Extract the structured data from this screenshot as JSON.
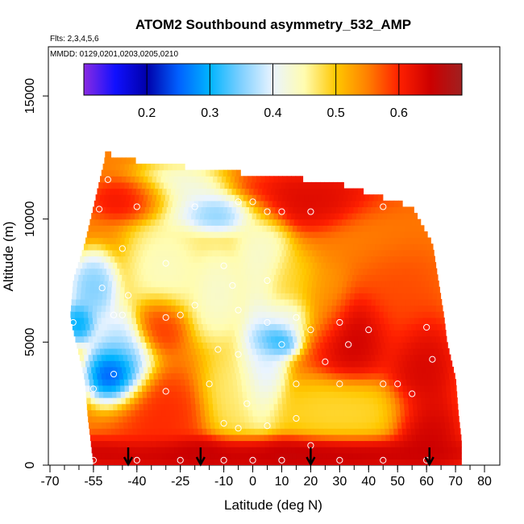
{
  "chart_data": {
    "type": "heatmap",
    "title": "ATOM2 Southbound asymmetry_532_AMP",
    "subtitle_flights": "Flts: 2,3,4,5,6",
    "subtitle_dates": "MMDD: 0129,0201,0203,0205,0210",
    "xlabel": "Latitude (deg N)",
    "ylabel": "Altitude (m)",
    "xlim": [
      -70,
      80
    ],
    "ylim": [
      0,
      17000
    ],
    "x_ticks": [
      -70,
      -55,
      -40,
      -25,
      -10,
      0,
      10,
      20,
      30,
      40,
      50,
      60,
      70,
      80
    ],
    "x_tick_labels": [
      "-70",
      "-55",
      "-40",
      "-25",
      "-10",
      "0",
      "10",
      "20",
      "30",
      "40",
      "50",
      "60",
      "70",
      "80"
    ],
    "x_minor_step": 5,
    "y_ticks": [
      0,
      5000,
      10000,
      15000
    ],
    "y_tick_labels": [
      "0",
      "5000",
      "10000",
      "15000"
    ],
    "colorbar": {
      "range": [
        0.1,
        0.7
      ],
      "ticks": [
        0.2,
        0.3,
        0.4,
        0.5,
        0.6
      ],
      "tick_labels": [
        "0.2",
        "0.3",
        "0.4",
        "0.5",
        "0.6"
      ],
      "boundaries": [
        0.2,
        0.3,
        0.4,
        0.5,
        0.6
      ],
      "stops": [
        {
          "v": 0.1,
          "c": "#8a2be2"
        },
        {
          "v": 0.15,
          "c": "#1010ff"
        },
        {
          "v": 0.2,
          "c": "#0000aa"
        },
        {
          "v": 0.25,
          "c": "#0060ff"
        },
        {
          "v": 0.3,
          "c": "#00b4ff"
        },
        {
          "v": 0.35,
          "c": "#80d0ff"
        },
        {
          "v": 0.4,
          "c": "#eaf4ff"
        },
        {
          "v": 0.45,
          "c": "#fffcb0"
        },
        {
          "v": 0.5,
          "c": "#ffc800"
        },
        {
          "v": 0.55,
          "c": "#ff8000"
        },
        {
          "v": 0.6,
          "c": "#ff2000"
        },
        {
          "v": 0.65,
          "c": "#cc0000"
        },
        {
          "v": 0.7,
          "c": "#a02020"
        }
      ]
    },
    "envelope": [
      {
        "alt": 0,
        "lat_min": -55,
        "lat_max": 72
      },
      {
        "alt": 1000,
        "lat_min": -56,
        "lat_max": 72
      },
      {
        "alt": 2000,
        "lat_min": -57,
        "lat_max": 71
      },
      {
        "alt": 3500,
        "lat_min": -58,
        "lat_max": 70
      },
      {
        "alt": 5000,
        "lat_min": -61,
        "lat_max": 67
      },
      {
        "alt": 6000,
        "lat_min": -63,
        "lat_max": 66
      },
      {
        "alt": 7500,
        "lat_min": -62,
        "lat_max": 64
      },
      {
        "alt": 9000,
        "lat_min": -58,
        "lat_max": 62
      },
      {
        "alt": 10500,
        "lat_min": -55,
        "lat_max": 55
      },
      {
        "alt": 11500,
        "lat_min": -53,
        "lat_max": 28
      },
      {
        "alt": 12000,
        "lat_min": -52,
        "lat_max": -15
      },
      {
        "alt": 12500,
        "lat_min": -51,
        "lat_max": -49
      }
    ],
    "field_centers": [
      {
        "lat": -48,
        "alt": 3700,
        "r_lat": 6,
        "r_alt": 800,
        "v": 0.14
      },
      {
        "lat": -60,
        "alt": 5800,
        "r_lat": 4,
        "r_alt": 600,
        "v": 0.27
      },
      {
        "lat": -55,
        "alt": 7200,
        "r_lat": 6,
        "r_alt": 1000,
        "v": 0.33
      },
      {
        "lat": -46,
        "alt": 4300,
        "r_lat": 8,
        "r_alt": 1500,
        "v": 0.35
      },
      {
        "lat": -30,
        "alt": 8000,
        "r_lat": 10,
        "r_alt": 1500,
        "v": 0.43
      },
      {
        "lat": -25,
        "alt": 11000,
        "r_lat": 12,
        "r_alt": 900,
        "v": 0.4
      },
      {
        "lat": -12,
        "alt": 10300,
        "r_lat": 10,
        "r_alt": 600,
        "v": 0.32
      },
      {
        "lat": -12,
        "alt": 7000,
        "r_lat": 7,
        "r_alt": 1500,
        "v": 0.42
      },
      {
        "lat": 3,
        "alt": 4400,
        "r_lat": 6,
        "r_alt": 2000,
        "v": 0.37
      },
      {
        "lat": 8,
        "alt": 5100,
        "r_lat": 6,
        "r_alt": 500,
        "v": 0.27
      },
      {
        "lat": 3,
        "alt": 8500,
        "r_lat": 7,
        "r_alt": 1500,
        "v": 0.42
      },
      {
        "lat": -6,
        "alt": 3000,
        "r_lat": 8,
        "r_alt": 1500,
        "v": 0.46
      },
      {
        "lat": 13,
        "alt": 6000,
        "r_lat": 6,
        "r_alt": 700,
        "v": 0.38
      },
      {
        "lat": 13,
        "alt": 7300,
        "r_lat": 7,
        "r_alt": 1000,
        "v": 0.48
      },
      {
        "lat": 24,
        "alt": 6500,
        "r_lat": 8,
        "r_alt": 1200,
        "v": 0.53
      },
      {
        "lat": 35,
        "alt": 5300,
        "r_lat": 10,
        "r_alt": 1200,
        "v": 0.66
      },
      {
        "lat": 50,
        "alt": 7000,
        "r_lat": 10,
        "r_alt": 2000,
        "v": 0.58
      },
      {
        "lat": 58,
        "alt": 4000,
        "r_lat": 8,
        "r_alt": 1500,
        "v": 0.65
      },
      {
        "lat": 20,
        "alt": 10800,
        "r_lat": 20,
        "r_alt": 800,
        "v": 0.64
      },
      {
        "lat": 45,
        "alt": 9500,
        "r_lat": 12,
        "r_alt": 1200,
        "v": 0.55
      },
      {
        "lat": 30,
        "alt": 2200,
        "r_lat": 20,
        "r_alt": 900,
        "v": 0.48
      },
      {
        "lat": -40,
        "alt": 10800,
        "r_lat": 10,
        "r_alt": 600,
        "v": 0.63
      },
      {
        "lat": -32,
        "alt": 5800,
        "r_lat": 6,
        "r_alt": 800,
        "v": 0.6
      },
      {
        "lat": 0,
        "alt": 500,
        "r_lat": 60,
        "r_alt": 500,
        "v": 0.67
      },
      {
        "lat": -35,
        "alt": 2000,
        "r_lat": 12,
        "r_alt": 1200,
        "v": 0.6
      },
      {
        "lat": 60,
        "alt": 1500,
        "r_lat": 8,
        "r_alt": 1200,
        "v": 0.66
      }
    ],
    "field_background": 0.55,
    "sample_points": [
      [
        -50,
        11600
      ],
      [
        -53,
        10400
      ],
      [
        -40,
        10500
      ],
      [
        -20,
        10500
      ],
      [
        -5,
        10700
      ],
      [
        0,
        10700
      ],
      [
        5,
        10300
      ],
      [
        10,
        10300
      ],
      [
        20,
        10300
      ],
      [
        45,
        10500
      ],
      [
        -45,
        8800
      ],
      [
        -30,
        8200
      ],
      [
        -10,
        8100
      ],
      [
        5,
        7500
      ],
      [
        -7,
        7300
      ],
      [
        -43,
        6900
      ],
      [
        -52,
        7200
      ],
      [
        -20,
        6500
      ],
      [
        -25,
        6100
      ],
      [
        -30,
        6000
      ],
      [
        -62,
        5800
      ],
      [
        -45,
        6100
      ],
      [
        5,
        5800
      ],
      [
        15,
        6000
      ],
      [
        20,
        5500
      ],
      [
        30,
        5800
      ],
      [
        40,
        5500
      ],
      [
        60,
        5600
      ],
      [
        -12,
        4700
      ],
      [
        -5,
        4500
      ],
      [
        10,
        4900
      ],
      [
        25,
        4200
      ],
      [
        -48,
        3700
      ],
      [
        -55,
        3100
      ],
      [
        -30,
        3000
      ],
      [
        -15,
        3300
      ],
      [
        15,
        3300
      ],
      [
        30,
        3300
      ],
      [
        45,
        3300
      ],
      [
        55,
        2900
      ],
      [
        -2,
        2500
      ],
      [
        5,
        1600
      ],
      [
        15,
        1900
      ],
      [
        -10,
        1700
      ],
      [
        -5,
        1500
      ],
      [
        20,
        800
      ],
      [
        -55,
        200
      ],
      [
        -40,
        200
      ],
      [
        -25,
        200
      ],
      [
        -10,
        200
      ],
      [
        0,
        200
      ],
      [
        10,
        200
      ],
      [
        30,
        200
      ],
      [
        45,
        200
      ],
      [
        60,
        200
      ],
      [
        -5,
        6300
      ],
      [
        -48,
        6100
      ],
      [
        33,
        4900
      ],
      [
        50,
        3300
      ],
      [
        62,
        4300
      ]
    ],
    "arrows_lat": [
      -43,
      -18,
      20,
      61
    ]
  }
}
